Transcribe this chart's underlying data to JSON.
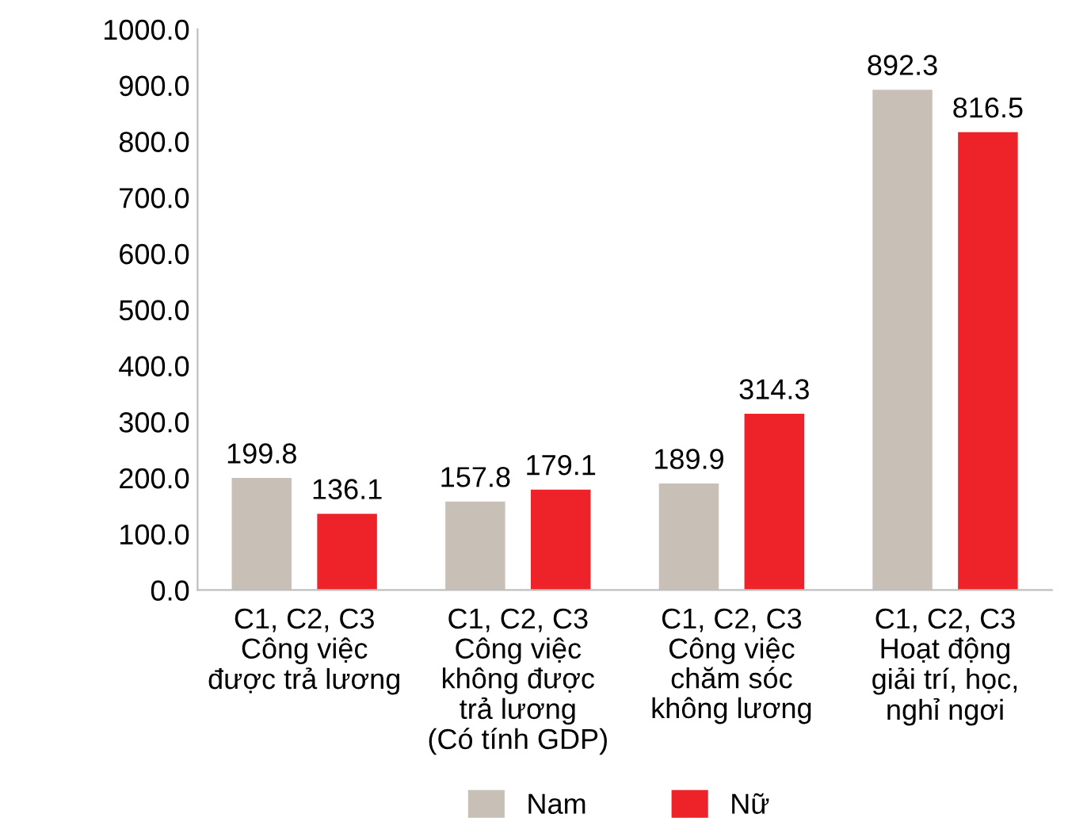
{
  "chart_data": {
    "type": "bar",
    "categories": [
      "C1, C2, C3\nCông việc\nđược trả lương",
      "C1, C2, C3\nCông việc\nkhông được\ntrả lương\n(Có tính GDP)",
      "C1, C2, C3\nCông việc\nchăm sóc\nkhông lương",
      "C1, C2, C3\nHoạt động\ngiải trí, học,\nnghỉ ngơi"
    ],
    "series": [
      {
        "name": "Nam",
        "color": "#c8c0b7",
        "values": [
          199.8,
          157.8,
          189.9,
          892.3
        ]
      },
      {
        "name": "Nữ",
        "color": "#ee2229",
        "values": [
          136.1,
          179.1,
          314.3,
          816.5
        ]
      }
    ],
    "ylim": [
      0,
      1000
    ],
    "yticks": [
      {
        "value": 0,
        "label": "0.0"
      },
      {
        "value": 100,
        "label": "100.0"
      },
      {
        "value": 200,
        "label": "200.0"
      },
      {
        "value": 300,
        "label": "300.0"
      },
      {
        "value": 400,
        "label": "400.0"
      },
      {
        "value": 500,
        "label": "500.0"
      },
      {
        "value": 600,
        "label": "600.0"
      },
      {
        "value": 700,
        "label": "700.0"
      },
      {
        "value": 800,
        "label": "800.0"
      },
      {
        "value": 900,
        "label": "900.0"
      },
      {
        "value": 1000,
        "label": "1000.0"
      }
    ],
    "data_labels": true,
    "legend": "bottom"
  }
}
